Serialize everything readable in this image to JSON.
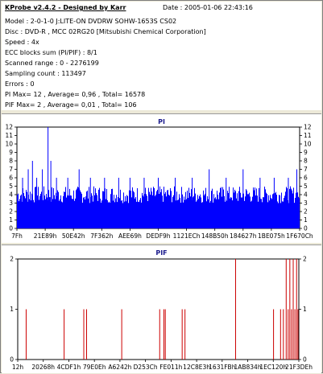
{
  "header": {
    "title": "KProbe v2.4.2 - Designed by Karr",
    "date": "Date : 2005-01-06 22:43:16",
    "lines": [
      "Model : 2-0-1-0 J:LITE-ON DVDRW SOHW-1653S CS02",
      "Disc : DVD-R , MCC 02RG20   [Mitsubishi Chemical Corporation]",
      "Speed : 4x",
      "ECC blocks sum (PI/PIF) : 8/1",
      "Scanned range : 0 - 2276199",
      "Sampling count : 113497",
      "Errors : 0",
      "PI Max= 12 , Average= 0,96 , Total= 16578",
      "PIF Max= 2 , Average= 0,01 , Total= 106"
    ]
  },
  "chart_data": [
    {
      "type": "bar",
      "title": "PI",
      "ylim": [
        0,
        12
      ],
      "yticks": [
        0,
        1,
        2,
        3,
        4,
        5,
        6,
        7,
        8,
        9,
        10,
        11,
        12
      ],
      "xticks": [
        "7Fh",
        "21E89h",
        "50E42h",
        "7F362h",
        "AEE69h",
        "DEDF9h",
        "1121ECh",
        "148B50h",
        "184627h",
        "1BE075h",
        "1F670Ch"
      ],
      "max": 12,
      "average": 0.96,
      "baseline_band": [
        3,
        5
      ],
      "spikes": [
        {
          "x": 0.02,
          "v": 6
        },
        {
          "x": 0.04,
          "v": 7
        },
        {
          "x": 0.055,
          "v": 8
        },
        {
          "x": 0.07,
          "v": 6
        },
        {
          "x": 0.09,
          "v": 7
        },
        {
          "x": 0.11,
          "v": 12
        },
        {
          "x": 0.12,
          "v": 8
        },
        {
          "x": 0.14,
          "v": 6
        },
        {
          "x": 0.18,
          "v": 6
        },
        {
          "x": 0.22,
          "v": 7
        },
        {
          "x": 0.26,
          "v": 6
        },
        {
          "x": 0.31,
          "v": 6
        },
        {
          "x": 0.36,
          "v": 6
        },
        {
          "x": 0.4,
          "v": 6
        },
        {
          "x": 0.45,
          "v": 6
        },
        {
          "x": 0.5,
          "v": 6
        },
        {
          "x": 0.56,
          "v": 6
        },
        {
          "x": 0.62,
          "v": 6
        },
        {
          "x": 0.68,
          "v": 7
        },
        {
          "x": 0.74,
          "v": 6
        },
        {
          "x": 0.8,
          "v": 7
        },
        {
          "x": 0.86,
          "v": 6
        },
        {
          "x": 0.91,
          "v": 6
        },
        {
          "x": 0.96,
          "v": 6
        },
        {
          "x": 0.99,
          "v": 7
        }
      ]
    },
    {
      "type": "bar",
      "title": "PIF",
      "ylim": [
        0,
        2
      ],
      "yticks": [
        0,
        1,
        2
      ],
      "xticks": [
        "12h",
        "20268h",
        "4CDF1h",
        "79E0Eh",
        "A6242h",
        "D253Ch",
        "FE011h",
        "12C8E3h",
        "1631FBh",
        "1AB834h",
        "1EC120h",
        "21F3DEh"
      ],
      "max": 2,
      "average": 0.01,
      "spikes": [
        {
          "x": 0.03,
          "v": 1
        },
        {
          "x": 0.165,
          "v": 1
        },
        {
          "x": 0.235,
          "v": 1
        },
        {
          "x": 0.245,
          "v": 1
        },
        {
          "x": 0.37,
          "v": 1
        },
        {
          "x": 0.505,
          "v": 1
        },
        {
          "x": 0.52,
          "v": 1
        },
        {
          "x": 0.525,
          "v": 1
        },
        {
          "x": 0.585,
          "v": 1
        },
        {
          "x": 0.595,
          "v": 1
        },
        {
          "x": 0.775,
          "v": 2
        },
        {
          "x": 0.91,
          "v": 1
        },
        {
          "x": 0.935,
          "v": 1
        },
        {
          "x": 0.945,
          "v": 1
        },
        {
          "x": 0.955,
          "v": 2
        },
        {
          "x": 0.962,
          "v": 1
        },
        {
          "x": 0.968,
          "v": 2
        },
        {
          "x": 0.974,
          "v": 1
        },
        {
          "x": 0.98,
          "v": 2
        },
        {
          "x": 0.986,
          "v": 1
        },
        {
          "x": 0.992,
          "v": 2
        },
        {
          "x": 0.997,
          "v": 1
        }
      ]
    }
  ]
}
